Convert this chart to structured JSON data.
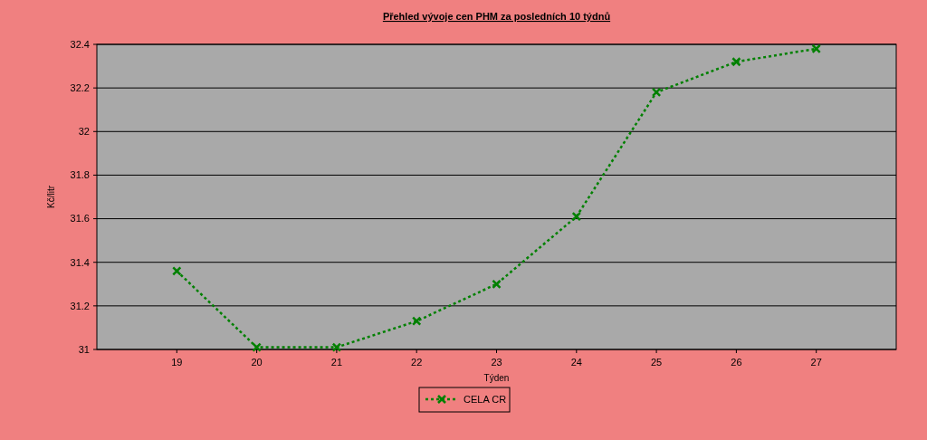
{
  "chart_data": {
    "type": "line",
    "title": "Přehled vývoje cen PHM za posledních 10 týdnů",
    "xlabel": "Týden",
    "ylabel": "Kč/litr",
    "x": [
      19,
      20,
      21,
      22,
      23,
      24,
      25,
      26,
      27
    ],
    "series": [
      {
        "name": "CELA CR",
        "color": "#008000",
        "values": [
          31.36,
          31.01,
          31.01,
          31.13,
          31.3,
          31.61,
          32.18,
          32.32,
          32.38
        ]
      }
    ],
    "xlim": [
      18,
      28
    ],
    "xticks": [
      19,
      20,
      21,
      22,
      23,
      24,
      25,
      26,
      27
    ],
    "ylim": [
      31,
      32.4
    ],
    "yticks": [
      31,
      31.2,
      31.4,
      31.6,
      31.8,
      32,
      32.2,
      32.4
    ],
    "grid": "y",
    "legend": "bottom",
    "marker": "cross",
    "line_style": "dotted"
  }
}
